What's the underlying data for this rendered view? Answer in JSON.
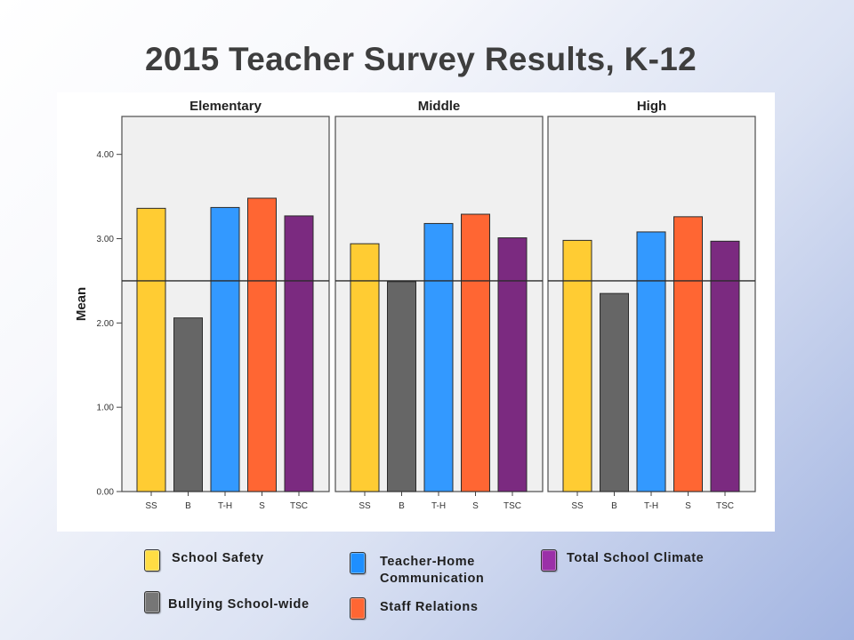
{
  "chart_data": {
    "type": "bar",
    "title": "2015 Teacher Survey Results, K-12",
    "ylabel": "Mean",
    "ylim": [
      0,
      4.45
    ],
    "yticks": [
      "0.00",
      "1.00",
      "2.00",
      "3.00",
      "4.00"
    ],
    "grid": false,
    "categories": [
      "SS",
      "B",
      "T-H",
      "S",
      "TSC"
    ],
    "colors": [
      "#FFCC33",
      "#666666",
      "#3399FF",
      "#FF6633",
      "#7B2A80"
    ],
    "reference_line": 2.5,
    "panels": [
      {
        "name": "Elementary",
        "values": [
          3.36,
          2.06,
          3.37,
          3.48,
          3.27
        ]
      },
      {
        "name": "Middle",
        "values": [
          2.94,
          2.49,
          3.18,
          3.29,
          3.01
        ]
      },
      {
        "name": "High",
        "values": [
          2.98,
          2.35,
          3.08,
          3.26,
          2.97
        ]
      }
    ],
    "legend_placement": "bottom",
    "legend": [
      {
        "label": "School Safety",
        "color": "#FFDD44"
      },
      {
        "label": "Bullying School-wide",
        "color": "#767676"
      },
      {
        "label": "Teacher-Home Communication",
        "color": "#1E8FFF"
      },
      {
        "label": "Staff Relations",
        "color": "#FF6633"
      },
      {
        "label": "Total School Climate",
        "color": "#9B30A8"
      }
    ]
  }
}
